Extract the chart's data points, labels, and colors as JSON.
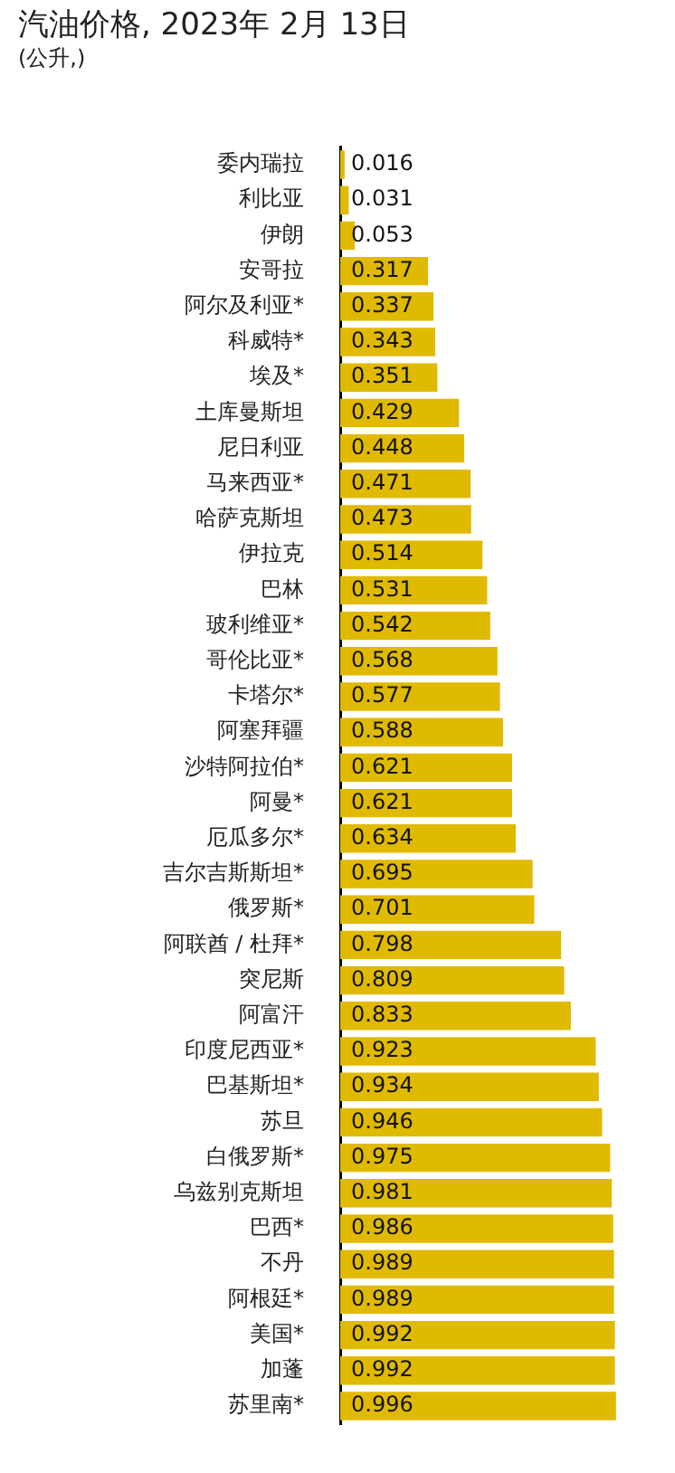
{
  "chart_data": {
    "type": "bar",
    "orientation": "horizontal",
    "title": "汽油价格, 2023年 2月 13日",
    "subtitle": "(公升,)",
    "categories": [
      "委内瑞拉",
      "利比亚",
      "伊朗",
      "安哥拉",
      "阿尔及利亚*",
      "科威特*",
      "埃及*",
      "土库曼斯坦",
      "尼日利亚",
      "马来西亚*",
      "哈萨克斯坦",
      "伊拉克",
      "巴林",
      "玻利维亚*",
      "哥伦比亚*",
      "卡塔尔*",
      "阿塞拜疆",
      "沙特阿拉伯*",
      "阿曼*",
      "厄瓜多尔*",
      "吉尔吉斯斯坦*",
      "俄罗斯*",
      "阿联酋 / 杜拜*",
      "突尼斯",
      "阿富汗",
      "印度尼西亚*",
      "巴基斯坦*",
      "苏旦",
      "白俄罗斯*",
      "乌兹别克斯坦",
      "巴西*",
      "不丹",
      "阿根廷*",
      "美国*",
      "加蓬",
      "苏里南*"
    ],
    "values": [
      0.016,
      0.031,
      0.053,
      0.317,
      0.337,
      0.343,
      0.351,
      0.429,
      0.448,
      0.471,
      0.473,
      0.514,
      0.531,
      0.542,
      0.568,
      0.577,
      0.588,
      0.621,
      0.621,
      0.634,
      0.695,
      0.701,
      0.798,
      0.809,
      0.833,
      0.923,
      0.934,
      0.946,
      0.975,
      0.981,
      0.986,
      0.989,
      0.989,
      0.992,
      0.992,
      0.996
    ],
    "color": "#e0ba00",
    "data_labels": true,
    "legend": false
  }
}
